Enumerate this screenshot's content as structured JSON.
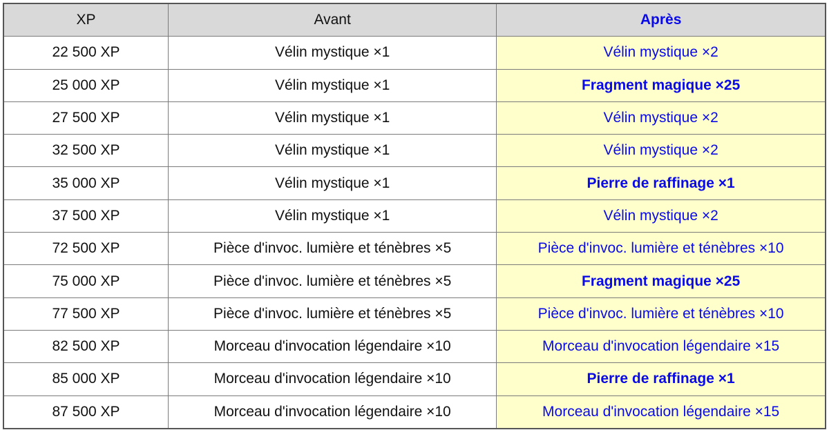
{
  "headers": {
    "xp": "XP",
    "avant": "Avant",
    "apres": "Après"
  },
  "colors": {
    "header_bg": "#d9d9d9",
    "highlight_bg": "#ffffcc",
    "accent_text": "#0a0ae6"
  },
  "rows": [
    {
      "xp": "22 500 XP",
      "avant": "Vélin mystique ×1",
      "apres": "Vélin mystique ×2",
      "bold": false
    },
    {
      "xp": "25 000 XP",
      "avant": "Vélin mystique ×1",
      "apres": "Fragment magique ×25",
      "bold": true
    },
    {
      "xp": "27 500 XP",
      "avant": "Vélin mystique ×1",
      "apres": "Vélin mystique ×2",
      "bold": false
    },
    {
      "xp": "32 500 XP",
      "avant": "Vélin mystique ×1",
      "apres": "Vélin mystique ×2",
      "bold": false
    },
    {
      "xp": "35 000 XP",
      "avant": "Vélin mystique ×1",
      "apres": "Pierre de raffinage ×1",
      "bold": true
    },
    {
      "xp": "37 500 XP",
      "avant": "Vélin mystique ×1",
      "apres": "Vélin mystique ×2",
      "bold": false
    },
    {
      "xp": "72 500 XP",
      "avant": "Pièce d'invoc. lumière et ténèbres ×5",
      "apres": "Pièce d'invoc. lumière et ténèbres ×10",
      "bold": false
    },
    {
      "xp": "75 000 XP",
      "avant": "Pièce d'invoc. lumière et ténèbres ×5",
      "apres": "Fragment magique ×25",
      "bold": true
    },
    {
      "xp": "77 500 XP",
      "avant": "Pièce d'invoc. lumière et ténèbres ×5",
      "apres": "Pièce d'invoc. lumière et ténèbres ×10",
      "bold": false
    },
    {
      "xp": "82 500 XP",
      "avant": "Morceau d'invocation légendaire ×10",
      "apres": "Morceau d'invocation légendaire ×15",
      "bold": false
    },
    {
      "xp": "85 000 XP",
      "avant": "Morceau d'invocation légendaire ×10",
      "apres": "Pierre de raffinage ×1",
      "bold": true
    },
    {
      "xp": "87 500 XP",
      "avant": "Morceau d'invocation légendaire ×10",
      "apres": "Morceau d'invocation légendaire ×15",
      "bold": false
    }
  ]
}
